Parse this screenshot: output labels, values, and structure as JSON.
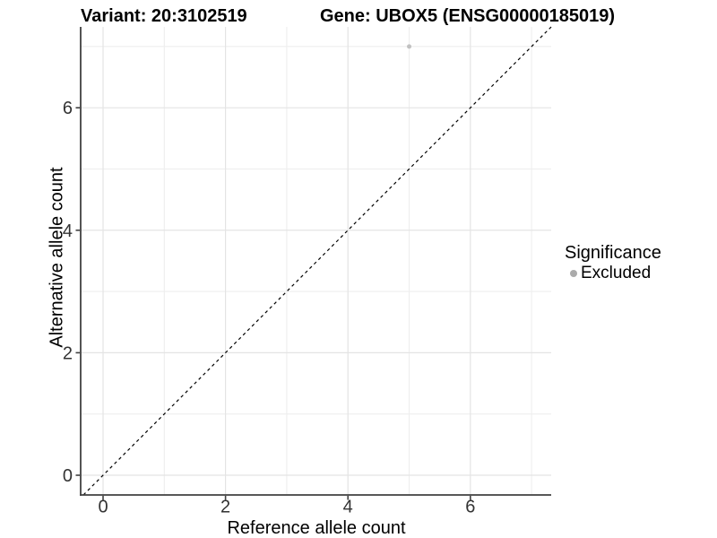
{
  "chart_data": {
    "type": "scatter",
    "title_left": "Variant: 20:3102519",
    "title_right": "Gene: UBOX5 (ENSG00000185019)",
    "xlabel": "Reference allele count",
    "ylabel": "Alternative allele count",
    "xlim": [
      -0.366,
      7.32
    ],
    "ylim": [
      -0.322,
      7.32
    ],
    "x_major_ticks": [
      0,
      2,
      4,
      6
    ],
    "x_tick_labels": [
      "0",
      "2",
      "4",
      "6"
    ],
    "x_minor_ticks": [
      1,
      3,
      5,
      7
    ],
    "y_major_ticks": [
      0,
      2,
      4,
      6
    ],
    "y_tick_labels": [
      "0",
      "2",
      "4",
      "6"
    ],
    "y_minor_ticks": [
      1,
      3,
      5,
      7
    ],
    "grid": "on",
    "series": [
      {
        "name": "Excluded",
        "color": "#c1c1c1",
        "point_radius": 2.5,
        "points": [
          {
            "x": 5,
            "y": 7
          }
        ]
      }
    ],
    "reference_line": {
      "kind": "identity y = x",
      "linetype": "dashed",
      "color": "#000000"
    },
    "legend": {
      "position": "right",
      "title": "Significance",
      "entries": [
        {
          "label": "Excluded",
          "color": "#ababab"
        }
      ]
    }
  },
  "colors": {
    "background": "#ffffff",
    "grid_major": "#e4e4e4",
    "grid_minor": "#eeeeee",
    "axis_line": "#404040",
    "tick_mark": "#404040",
    "tick_label": "#333333",
    "title_text": "#000000",
    "identity_line": "#000000"
  }
}
